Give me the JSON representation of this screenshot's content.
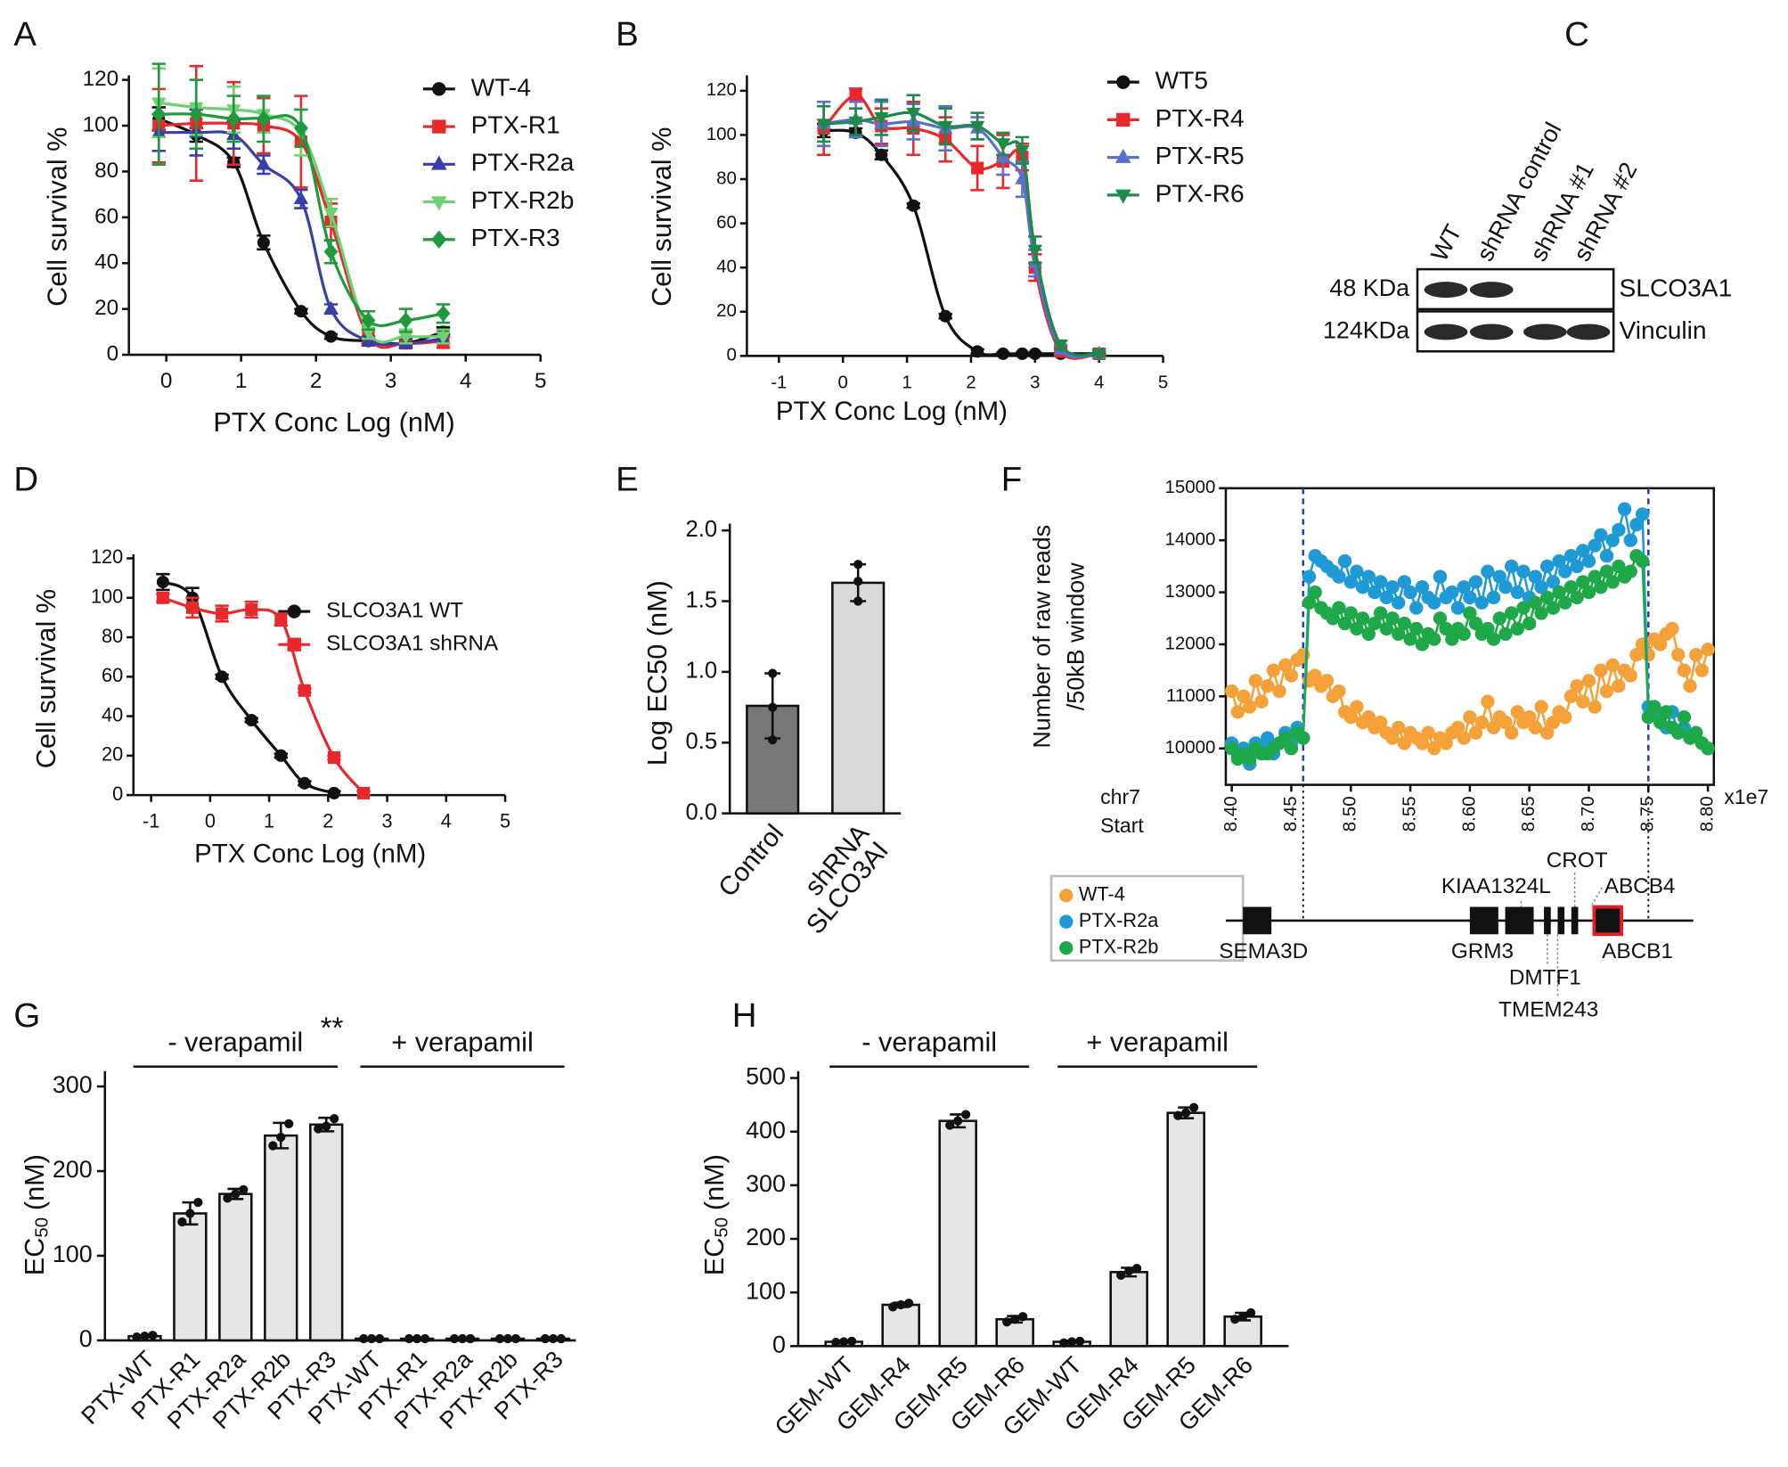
{
  "chart_data": [
    {
      "type": "line",
      "panel": "A",
      "xlabel": "PTX Conc Log (nM)",
      "ylabel": "Cell survival %",
      "xlim": [
        -0.5,
        5
      ],
      "xticks": [
        0,
        1,
        2,
        3,
        4,
        5
      ],
      "ylim": [
        0,
        122
      ],
      "yticks": [
        0,
        20,
        40,
        60,
        80,
        100,
        120
      ],
      "x": [
        -0.1,
        0.4,
        0.9,
        1.3,
        1.8,
        2.2,
        2.7,
        3.2,
        3.7
      ],
      "series": [
        {
          "name": "WT-4",
          "color": "#111111",
          "marker": "circle",
          "values": [
            103,
            96,
            84,
            49,
            19,
            8,
            6,
            5,
            10
          ],
          "errors": [
            5,
            3,
            2,
            3,
            1,
            1,
            1,
            1,
            2
          ]
        },
        {
          "name": "PTX-R1",
          "color": "#e8282a",
          "marker": "square",
          "values": [
            100,
            101,
            101,
            100,
            93,
            58,
            8,
            5,
            6
          ],
          "errors": [
            16,
            25,
            18,
            12,
            20,
            8,
            3,
            2,
            3
          ]
        },
        {
          "name": "PTX-R2a",
          "color": "#3a3ea8",
          "marker": "triangle-up",
          "values": [
            97,
            97,
            96,
            83,
            68,
            20,
            6,
            5,
            7
          ],
          "errors": [
            8,
            10,
            6,
            4,
            4,
            2,
            2,
            2,
            2
          ]
        },
        {
          "name": "PTX-R2b",
          "color": "#6ed06e",
          "marker": "triangle-down",
          "values": [
            110,
            108,
            107,
            105,
            97,
            62,
            10,
            8,
            8
          ],
          "errors": [
            15,
            12,
            10,
            8,
            10,
            6,
            3,
            3,
            3
          ]
        },
        {
          "name": "PTX-R3",
          "color": "#1e9a3c",
          "marker": "diamond",
          "values": [
            105,
            105,
            103,
            103,
            99,
            45,
            15,
            15,
            18
          ],
          "errors": [
            22,
            15,
            10,
            10,
            8,
            5,
            4,
            5,
            4
          ]
        }
      ]
    },
    {
      "type": "line",
      "panel": "B",
      "xlabel": "PTX Conc Log (nM)",
      "ylabel": "Cell survival %",
      "xlim": [
        -1.5,
        5
      ],
      "xticks": [
        -1,
        0,
        1,
        2,
        3,
        4,
        5
      ],
      "ylim": [
        0,
        127
      ],
      "yticks": [
        0,
        20,
        40,
        60,
        80,
        100,
        120
      ],
      "x": [
        -0.3,
        0.2,
        0.6,
        1.1,
        1.6,
        2.1,
        2.5,
        2.8,
        3.0,
        3.4,
        4.0
      ],
      "series": [
        {
          "name": "WT5",
          "color": "#111111",
          "marker": "circle",
          "values": [
            102,
            101,
            91,
            68,
            18,
            2,
            1,
            1,
            1,
            1,
            1
          ],
          "errors": [
            3,
            2,
            2,
            1,
            1,
            1,
            0.5,
            0.5,
            0.5,
            0.5,
            0.5
          ]
        },
        {
          "name": "PTX-R4",
          "color": "#e8282a",
          "marker": "square",
          "values": [
            103,
            118,
            104,
            103,
            98,
            85,
            88,
            90,
            40,
            2,
            1
          ],
          "errors": [
            12,
            3,
            8,
            12,
            10,
            10,
            12,
            6,
            6,
            2,
            1
          ]
        },
        {
          "name": "PTX-R5",
          "color": "#5a6fd0",
          "marker": "triangle-up",
          "values": [
            105,
            107,
            105,
            106,
            103,
            103,
            90,
            80,
            42,
            3,
            1
          ],
          "errors": [
            10,
            8,
            10,
            8,
            10,
            5,
            8,
            8,
            6,
            2,
            1
          ]
        },
        {
          "name": "PTX-R6",
          "color": "#1e8a4a",
          "marker": "triangle-down",
          "values": [
            105,
            106,
            108,
            110,
            104,
            104,
            96,
            93,
            48,
            5,
            1
          ],
          "errors": [
            8,
            6,
            8,
            8,
            8,
            6,
            5,
            6,
            6,
            2,
            1
          ]
        }
      ]
    },
    {
      "type": "line",
      "panel": "D",
      "xlabel": "PTX Conc Log (nM)",
      "ylabel": "Cell survival %",
      "xlim": [
        -1.3,
        5
      ],
      "xticks": [
        -1,
        0,
        1,
        2,
        3,
        4,
        5
      ],
      "ylim": [
        0,
        122
      ],
      "yticks": [
        0,
        20,
        40,
        60,
        80,
        100,
        120
      ],
      "x": [
        -0.8,
        -0.3,
        0.2,
        0.7,
        1.2,
        1.6,
        2.1,
        2.6
      ],
      "series": [
        {
          "name": "SLCO3A1 WT",
          "color": "#111111",
          "marker": "circle",
          "values": [
            108,
            100,
            60,
            38,
            20,
            6,
            1,
            null
          ],
          "errors": [
            4,
            5,
            1,
            1,
            1,
            1,
            1,
            null
          ]
        },
        {
          "name": "SLCO3A1 shRNA",
          "color": "#e8282a",
          "marker": "square",
          "values": [
            100,
            95,
            92,
            94,
            89,
            53,
            19,
            1
          ],
          "errors": [
            2,
            5,
            4,
            4,
            3,
            1,
            1,
            1
          ]
        }
      ]
    },
    {
      "type": "bar",
      "panel": "E",
      "ylabel": "Log EC50 (nM)",
      "categories": [
        "Control",
        [
          "shRNA",
          "SLCO3AI"
        ]
      ],
      "values": [
        0.76,
        1.63
      ],
      "errors": [
        0.23,
        0.13
      ],
      "points": [
        [
          0.99,
          0.75,
          0.52
        ],
        [
          1.76,
          1.64,
          1.5
        ]
      ],
      "colors": [
        "#777777",
        "#d9d9d9"
      ],
      "ylim": [
        0,
        2
      ],
      "yticks": [
        {
          "value": 0,
          "label": "0.0"
        },
        {
          "value": 0.5,
          "label": "0.5"
        },
        {
          "value": 1,
          "label": "1.0"
        },
        {
          "value": 1.5,
          "label": "1.5"
        },
        {
          "value": 2,
          "label": "2.0"
        }
      ]
    },
    {
      "type": "line",
      "panel": "F",
      "frame": true,
      "ylabel": [
        "Number of raw reads",
        "/50kB window"
      ],
      "xlabel": [
        "chr7",
        "Start"
      ],
      "xscale_label": "x1e7",
      "xlim": [
        8.395,
        8.805
      ],
      "xticks": [
        {
          "value": 8.4,
          "label": "8.40"
        },
        8.45,
        {
          "value": 8.5,
          "label": "8.50"
        },
        8.55,
        {
          "value": 8.6,
          "label": "8.60"
        },
        8.65,
        {
          "value": 8.7,
          "label": "8.70"
        },
        8.75,
        {
          "value": 8.8,
          "label": "8.80"
        }
      ],
      "ylim": [
        9300,
        15000
      ],
      "yticks": [
        10000,
        11000,
        12000,
        13000,
        14000,
        15000
      ],
      "vlines": [
        8.46,
        8.75
      ],
      "x": [
        8.4,
        8.405,
        8.41,
        8.415,
        8.42,
        8.425,
        8.43,
        8.435,
        8.44,
        8.445,
        8.45,
        8.455,
        8.46,
        8.465,
        8.47,
        8.475,
        8.48,
        8.485,
        8.49,
        8.495,
        8.5,
        8.505,
        8.51,
        8.515,
        8.52,
        8.525,
        8.53,
        8.535,
        8.54,
        8.545,
        8.55,
        8.555,
        8.56,
        8.565,
        8.57,
        8.575,
        8.58,
        8.585,
        8.59,
        8.595,
        8.6,
        8.605,
        8.61,
        8.615,
        8.62,
        8.625,
        8.63,
        8.635,
        8.64,
        8.645,
        8.65,
        8.655,
        8.66,
        8.665,
        8.67,
        8.675,
        8.68,
        8.685,
        8.69,
        8.695,
        8.7,
        8.705,
        8.71,
        8.715,
        8.72,
        8.725,
        8.73,
        8.735,
        8.74,
        8.745,
        8.75,
        8.755,
        8.76,
        8.765,
        8.77,
        8.775,
        8.78,
        8.785,
        8.79,
        8.795,
        8.8
      ],
      "series": [
        {
          "name": "WT-4",
          "color": "#f5a13a",
          "marker": "circle",
          "values": [
            11100,
            10700,
            11000,
            10800,
            11300,
            10900,
            11200,
            11500,
            11100,
            11600,
            11400,
            11700,
            11800,
            11300,
            11400,
            11200,
            11300,
            11000,
            11100,
            10700,
            10600,
            10800,
            10500,
            10600,
            10400,
            10500,
            10300,
            10200,
            10400,
            10100,
            10300,
            10200,
            10100,
            10300,
            10000,
            10200,
            10100,
            10300,
            10400,
            10200,
            10600,
            10300,
            10500,
            10900,
            10400,
            10600,
            10500,
            10300,
            10700,
            10500,
            10600,
            10400,
            10800,
            10300,
            10500,
            10700,
            10600,
            11000,
            11200,
            10900,
            11300,
            10800,
            11500,
            11100,
            11600,
            11200,
            11500,
            11400,
            11800,
            12000,
            11800,
            12100,
            12000,
            12200,
            12300,
            11800,
            11500,
            11200,
            11800,
            11500,
            11900
          ]
        },
        {
          "name": "PTX-R2a",
          "color": "#1f9ad6",
          "marker": "circle",
          "values": [
            10100,
            9900,
            10000,
            9700,
            10100,
            10000,
            10200,
            9900,
            10100,
            10300,
            10100,
            10400,
            10200,
            13300,
            13700,
            13600,
            13500,
            13400,
            13300,
            13600,
            13200,
            13400,
            13100,
            13300,
            13000,
            13200,
            12900,
            13100,
            12800,
            13200,
            13000,
            12700,
            13100,
            12900,
            12800,
            13300,
            12900,
            13000,
            12700,
            13100,
            12900,
            13200,
            12800,
            13400,
            12900,
            13300,
            13100,
            13500,
            13000,
            13400,
            12900,
            13300,
            13100,
            13500,
            13200,
            13600,
            13400,
            13700,
            13500,
            13800,
            13600,
            13900,
            14100,
            13700,
            14000,
            14200,
            14600,
            14000,
            14300,
            14500,
            10800,
            10700,
            10600,
            10400,
            10700,
            10300,
            10400,
            10200,
            10300,
            10100,
            10000
          ]
        },
        {
          "name": "PTX-R2b",
          "color": "#1fa84a",
          "marker": "circle",
          "values": [
            10000,
            9800,
            9900,
            9800,
            10000,
            9900,
            9900,
            10000,
            10100,
            10200,
            10000,
            10300,
            10200,
            12800,
            13000,
            12700,
            12600,
            12500,
            12700,
            12400,
            12600,
            12300,
            12500,
            12200,
            12400,
            12600,
            12300,
            12500,
            12200,
            12400,
            12100,
            12300,
            12000,
            12200,
            12100,
            12500,
            12300,
            12100,
            12300,
            12200,
            12600,
            12400,
            12200,
            12300,
            12100,
            12500,
            12200,
            12600,
            12300,
            12700,
            12400,
            12800,
            12600,
            12900,
            12700,
            13000,
            12800,
            13100,
            12900,
            13200,
            13000,
            13300,
            13100,
            13400,
            13200,
            13500,
            13300,
            13400,
            13700,
            13600,
            10600,
            10800,
            10500,
            10700,
            10400,
            10300,
            10600,
            10200,
            10300,
            10100,
            10000
          ]
        }
      ]
    },
    {
      "type": "bar",
      "panel": "G",
      "ylabel": "EC",
      "ylabel_sub": "50",
      "ylabel_unit": "(nM)",
      "groups": [
        "- verapamil",
        "+ verapamil"
      ],
      "annotation": "**",
      "categories": [
        "PTX-WT",
        "PTX-R1",
        "PTX-R2a",
        "PTX-R2b",
        "PTX-R3",
        "PTX-WT",
        "PTX-R1",
        "PTX-R2a",
        "PTX-R2b",
        "PTX-R3"
      ],
      "values": [
        5,
        150,
        173,
        242,
        255,
        2,
        2,
        2,
        2,
        2
      ],
      "errors": [
        1,
        13,
        6,
        15,
        8,
        0.5,
        0.5,
        0.5,
        0.5,
        0.5
      ],
      "points": [
        [
          4,
          5,
          6
        ],
        [
          140,
          150,
          163
        ],
        [
          168,
          173,
          178
        ],
        [
          230,
          240,
          256
        ],
        [
          250,
          253,
          262
        ],
        [
          2,
          2,
          2
        ],
        [
          2,
          2,
          2
        ],
        [
          2,
          2,
          2
        ],
        [
          2,
          2,
          2
        ],
        [
          2,
          2,
          2
        ]
      ],
      "color": "#e6e6e6",
      "ylim": [
        0,
        310
      ],
      "yticks": [
        0,
        100,
        200,
        300
      ]
    },
    {
      "type": "bar",
      "panel": "H",
      "ylabel": "EC",
      "ylabel_sub": "50",
      "ylabel_unit": "(nM)",
      "groups": [
        "- verapamil",
        "+ verapamil"
      ],
      "categories": [
        "GEM-WT",
        "GEM-R4",
        "GEM-R5",
        "GEM-R6",
        "GEM-WT",
        "GEM-R4",
        "GEM-R5",
        "GEM-R6"
      ],
      "values": [
        8,
        77,
        420,
        50,
        8,
        138,
        435,
        55
      ],
      "errors": [
        2,
        4,
        12,
        6,
        2,
        8,
        10,
        7
      ],
      "points": [
        [
          7,
          8,
          9
        ],
        [
          73,
          77,
          80
        ],
        [
          412,
          420,
          432
        ],
        [
          45,
          50,
          55
        ],
        [
          6,
          8,
          9
        ],
        [
          132,
          140,
          145
        ],
        [
          430,
          435,
          445
        ],
        [
          50,
          55,
          62
        ]
      ],
      "color": "#e6e6e6",
      "ylim": [
        0,
        500
      ],
      "yticks": [
        0,
        100,
        200,
        300,
        400,
        500
      ]
    }
  ],
  "blot": {
    "panel": "C",
    "lanes": [
      "WT",
      "shRNA control",
      "shRNA #1",
      "shRNA #2"
    ],
    "rows": [
      {
        "size": "48 KDa",
        "protein": "SLCO3A1"
      },
      {
        "size": "124KDa",
        "protein": "Vinculin"
      }
    ]
  },
  "gene_map": {
    "genes": [
      "SEMA3D",
      "GRM3",
      "KIAA1324L",
      "DMTF1",
      "TMEM243",
      "CROT",
      "ABCB4",
      "ABCB1"
    ]
  }
}
